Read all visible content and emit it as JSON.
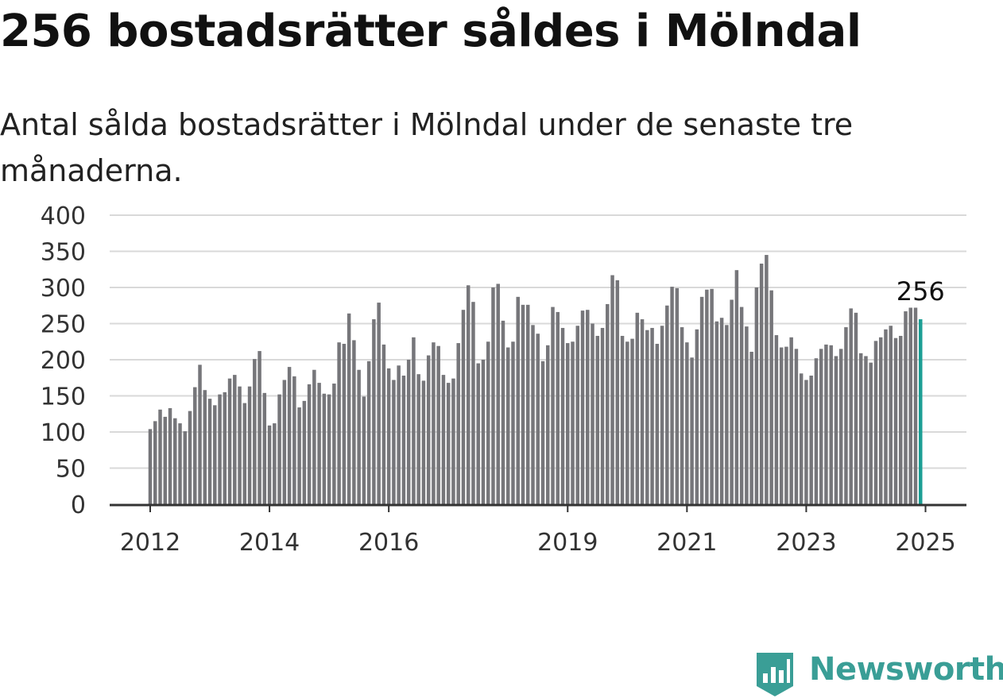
{
  "header": {
    "title": "256 bostadsrätter såldes i Mölndal",
    "subtitle": "Antal sålda bostadsrätter i Mölndal under de senaste tre månaderna."
  },
  "brand": {
    "name": "Newsworthy",
    "icon": "bar-chart-flag-icon",
    "color": "#3a9e96"
  },
  "chart_data": {
    "type": "bar",
    "title": "256 bostadsrätter såldes i Mölndal",
    "subtitle": "Antal sålda bostadsrätter i Mölndal under de senaste tre månaderna.",
    "x_start": "2012-01",
    "x_end": "2025-01",
    "x_ticks": [
      "2012",
      "2014",
      "2016",
      "2019",
      "2021",
      "2023",
      "2025"
    ],
    "y_ticks": [
      "0",
      "50",
      "100",
      "150",
      "200",
      "250",
      "300",
      "350",
      "400"
    ],
    "ylim": [
      0,
      400
    ],
    "grid": true,
    "bar_color": "#76767a",
    "highlight_color": "#1b9e94",
    "highlight_label": "256",
    "values": [
      104,
      115,
      131,
      121,
      133,
      119,
      112,
      101,
      129,
      162,
      193,
      158,
      146,
      137,
      152,
      155,
      174,
      179,
      163,
      140,
      163,
      201,
      212,
      154,
      109,
      112,
      152,
      172,
      190,
      177,
      134,
      143,
      166,
      186,
      168,
      153,
      152,
      167,
      224,
      222,
      264,
      227,
      186,
      149,
      198,
      256,
      279,
      221,
      188,
      172,
      192,
      178,
      200,
      231,
      180,
      171,
      206,
      224,
      219,
      179,
      168,
      174,
      223,
      269,
      303,
      280,
      195,
      200,
      225,
      300,
      305,
      254,
      217,
      225,
      287,
      276,
      276,
      248,
      236,
      198,
      220,
      273,
      266,
      244,
      223,
      225,
      247,
      268,
      269,
      250,
      233,
      244,
      277,
      317,
      310,
      233,
      225,
      229,
      265,
      256,
      241,
      244,
      222,
      247,
      275,
      301,
      299,
      245,
      224,
      203,
      242,
      287,
      297,
      298,
      253,
      258,
      248,
      283,
      324,
      273,
      246,
      211,
      300,
      333,
      345,
      296,
      234,
      217,
      218,
      231,
      215,
      181,
      172,
      178,
      202,
      215,
      221,
      220,
      205,
      215,
      245,
      271,
      265,
      209,
      205,
      196,
      226,
      231,
      242,
      247,
      230,
      233,
      267,
      272,
      272,
      256
    ]
  }
}
